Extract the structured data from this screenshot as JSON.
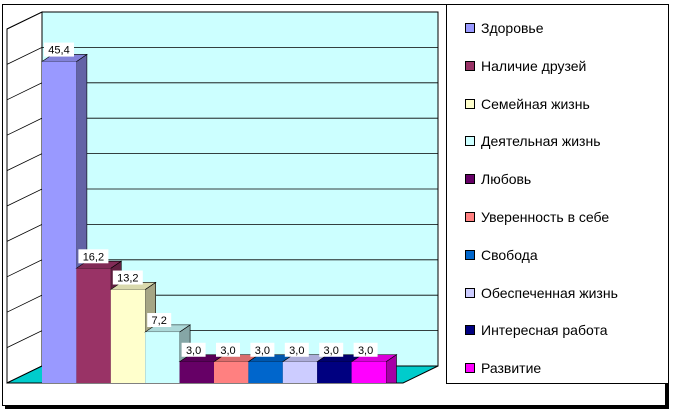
{
  "chart_data": {
    "type": "bar",
    "style": "3d-column",
    "ylim": [
      0,
      50
    ],
    "grid": true,
    "legend_position": "right",
    "series": [
      {
        "name": "Здоровье",
        "value": 45.4,
        "label": "45,4",
        "color": "#9999ff"
      },
      {
        "name": "Наличие друзей",
        "value": 16.2,
        "label": "16,2",
        "color": "#993366"
      },
      {
        "name": "Семейная жизнь",
        "value": 13.2,
        "label": "13,2",
        "color": "#ffffcc"
      },
      {
        "name": "Деятельная жизнь",
        "value": 7.2,
        "label": "7,2",
        "color": "#ccffff"
      },
      {
        "name": "Любовь",
        "value": 3.0,
        "label": "3,0",
        "color": "#660066"
      },
      {
        "name": "Уверенность в себе",
        "value": 3.0,
        "label": "3,0",
        "color": "#ff8080"
      },
      {
        "name": "Свобода",
        "value": 3.0,
        "label": "3,0",
        "color": "#0066cc"
      },
      {
        "name": "Обеспеченная жизнь",
        "value": 3.0,
        "label": "3,0",
        "color": "#ccccff"
      },
      {
        "name": "Интересная работа",
        "value": 3.0,
        "label": "3,0",
        "color": "#000080"
      },
      {
        "name": "Развитие",
        "value": 3.0,
        "label": "3,0",
        "color": "#ff00ff"
      }
    ],
    "colors": {
      "back_wall": "#ccffff",
      "floor": "#00cccc",
      "grid": "#000000"
    }
  }
}
